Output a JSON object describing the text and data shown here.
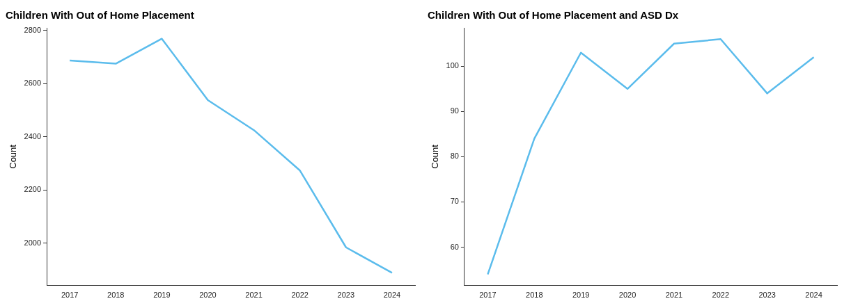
{
  "chart_data": [
    {
      "type": "line",
      "title": "Children With Out of Home Placement",
      "ylabel": "Count",
      "categories": [
        "2017",
        "2018",
        "2019",
        "2020",
        "2021",
        "2022",
        "2023",
        "2024"
      ],
      "series": [
        {
          "color": "#5bbcec",
          "values": [
            2687,
            2675,
            2769,
            2538,
            2425,
            2273,
            1984,
            1888
          ]
        }
      ],
      "ylim": [
        1840,
        2810
      ],
      "yticks": [
        2000,
        2200,
        2400,
        2600,
        2800
      ],
      "grid": false,
      "legend": false,
      "marker": "none",
      "line_style": "solid"
    },
    {
      "type": "line",
      "title": "Children With Out of Home Placement and ASD Dx",
      "ylabel": "Count",
      "categories": [
        "2017",
        "2018",
        "2019",
        "2020",
        "2021",
        "2022",
        "2023",
        "2024"
      ],
      "series": [
        {
          "color": "#5bbcec",
          "values": [
            54,
            84,
            103,
            95,
            105,
            106,
            94,
            102
          ]
        }
      ],
      "ylim": [
        51.5,
        108.5
      ],
      "yticks": [
        60,
        70,
        80,
        90,
        100
      ],
      "grid": false,
      "legend": false,
      "marker": "none",
      "line_style": "solid"
    }
  ]
}
